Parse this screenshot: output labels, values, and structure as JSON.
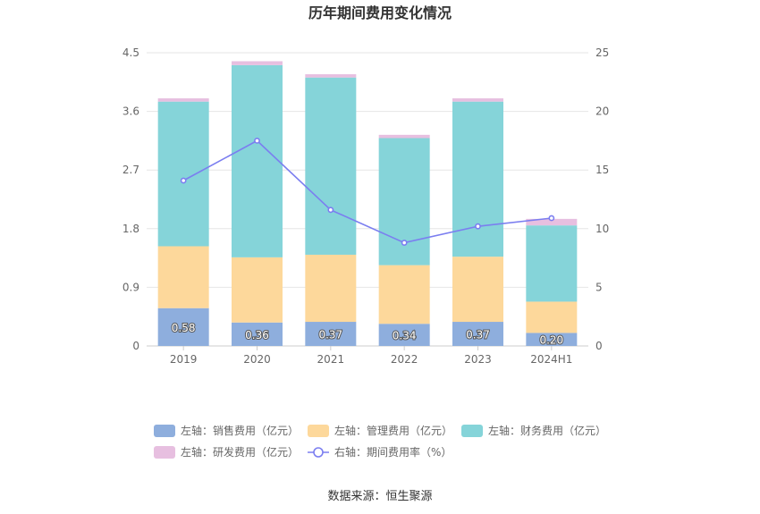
{
  "chart_data": {
    "type": "bar",
    "title": "历年期间费用变化情况",
    "categories": [
      "2019",
      "2020",
      "2021",
      "2022",
      "2023",
      "2024H1"
    ],
    "stacked": true,
    "y_left": {
      "ylim": [
        0,
        4.5
      ],
      "ticks": [
        "0",
        "0.9",
        "1.8",
        "2.7",
        "3.6",
        "4.5"
      ]
    },
    "y_right": {
      "ylim": [
        0,
        25
      ],
      "ticks": [
        "0",
        "5",
        "10",
        "15",
        "20",
        "25"
      ]
    },
    "series": [
      {
        "name": "左轴：销售费用（亿元）",
        "axis": "left",
        "color": "#8eaedd",
        "values": [
          0.58,
          0.36,
          0.37,
          0.34,
          0.37,
          0.2
        ],
        "labels": [
          "0.58",
          "0.36",
          "0.37",
          "0.34",
          "0.37",
          "0.20"
        ]
      },
      {
        "name": "左轴：管理费用（亿元）",
        "axis": "left",
        "color": "#fdd89b",
        "values": [
          0.95,
          1.0,
          1.03,
          0.9,
          1.0,
          0.48
        ]
      },
      {
        "name": "左轴：财务费用（亿元）",
        "axis": "left",
        "color": "#85d4d9",
        "values": [
          2.22,
          2.95,
          2.72,
          1.95,
          2.38,
          1.17
        ]
      },
      {
        "name": "左轴：研发费用（亿元）",
        "axis": "left",
        "color": "#e7bfe0",
        "values": [
          0.05,
          0.06,
          0.05,
          0.05,
          0.05,
          0.1
        ]
      },
      {
        "name": "右轴：期间费用率（%）",
        "axis": "right",
        "type": "line",
        "color": "#7b7ef0",
        "values": [
          14.1,
          17.5,
          11.6,
          8.8,
          10.2,
          10.9
        ]
      }
    ],
    "legend_position": "bottom",
    "source": "数据来源：恒生聚源"
  }
}
